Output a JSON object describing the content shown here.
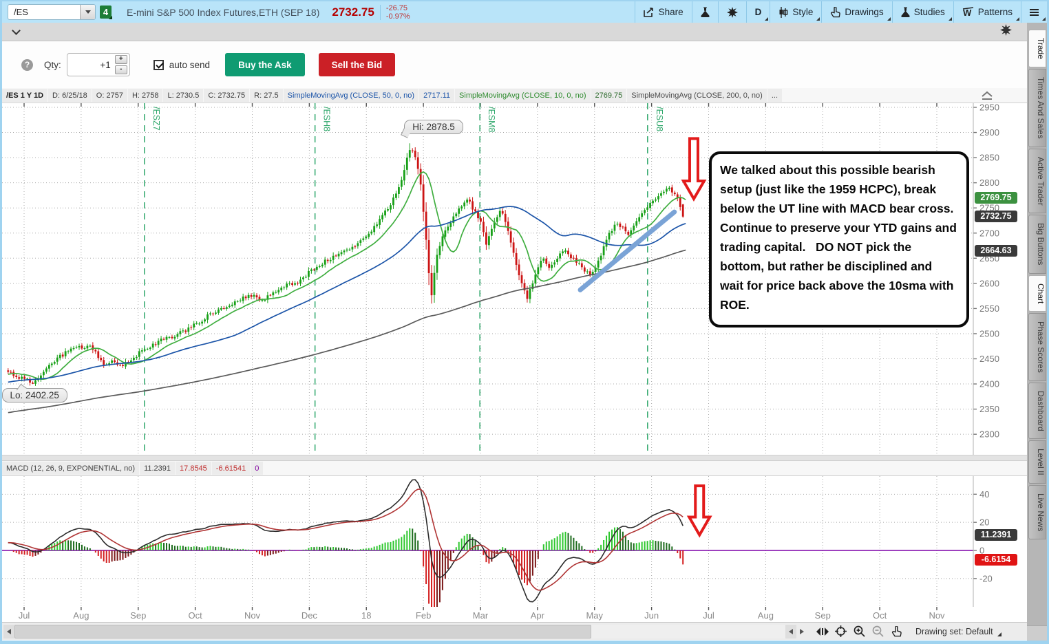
{
  "top_bar": {
    "symbol": "/ES",
    "link_badge": "4",
    "title": "E-mini S&P 500 Index Futures,ETH (SEP 18)",
    "price": "2732.75",
    "change": "-26.75",
    "change_pct": "-0.97%",
    "share_label": "Share",
    "timeframe_label": "D",
    "style_label": "Style",
    "drawings_label": "Drawings",
    "studies_label": "Studies",
    "patterns_label": "Patterns"
  },
  "order_bar": {
    "help": "?",
    "qty_label": "Qty:",
    "qty_value": "+1",
    "plus": "+",
    "minus": "-",
    "auto_send_label": "auto send",
    "buy_label": "Buy the Ask",
    "sell_label": "Sell the Bid"
  },
  "chart_header": {
    "cells": [
      {
        "t": "/ES 1 Y 1D",
        "c": "#1a1a1a",
        "b": true
      },
      {
        "t": "D: 6/25/18",
        "c": "#3c3c3c"
      },
      {
        "t": "O: 2757",
        "c": "#3c3c3c"
      },
      {
        "t": "H: 2758",
        "c": "#3c3c3c"
      },
      {
        "t": "L: 2730.5",
        "c": "#3c3c3c"
      },
      {
        "t": "C: 2732.75",
        "c": "#3c3c3c"
      },
      {
        "t": "R: 27.5",
        "c": "#3c3c3c"
      },
      {
        "t": "SimpleMovingAvg (CLOSE, 50, 0, no)",
        "c": "#1b54a8"
      },
      {
        "t": "2717.11",
        "c": "#1b54a8"
      },
      {
        "t": "SimpleMovingAvg (CLOSE, 10, 0, no)",
        "c": "#2e8b2e"
      },
      {
        "t": "2769.75",
        "c": "#2e6b2e"
      },
      {
        "t": "SimpleMovingAvg (CLOSE, 200, 0, no)",
        "c": "#4a4a4a"
      },
      {
        "t": "...",
        "c": "#4a4a4a"
      }
    ]
  },
  "macd_header": {
    "cells": [
      {
        "t": "MACD (12, 26, 9, EXPONENTIAL, no)",
        "c": "#3c3c3c"
      },
      {
        "t": "11.2391",
        "c": "#3c3c3c"
      },
      {
        "t": "17.8545",
        "c": "#c03030"
      },
      {
        "t": "-6.61541",
        "c": "#c03030"
      },
      {
        "t": "0",
        "c": "#8000a0"
      }
    ]
  },
  "sidebar": {
    "tabs": [
      {
        "label": "Trade",
        "active": true
      },
      {
        "label": "Times And Sales",
        "active": false
      },
      {
        "label": "Active Trader",
        "active": false
      },
      {
        "label": "Big Buttons",
        "active": false
      },
      {
        "label": "Chart",
        "active": true
      },
      {
        "label": "Phase Scores",
        "active": false
      },
      {
        "label": "Dashboard",
        "active": false
      },
      {
        "label": "Level II",
        "active": false
      },
      {
        "label": "Live News",
        "active": false
      }
    ]
  },
  "bottom_bar": {
    "drawing_set_label": "Drawing set: Default"
  },
  "annotation_note": "We talked about this possible bearish setup (just like the 1959 HCPC), break below the UT line with MACD bear cross.  Continue to preserve your YTD gains and trading capital.   DO NOT pick the bottom, but rather be disciplined and wait for price back above the 10sma with ROE.",
  "chart_data": {
    "type": "candlestick",
    "symbol": "/ES",
    "range": "1 Y",
    "interval": "1D",
    "price_ticks": [
      2950,
      2900,
      2850,
      2800,
      2750,
      2700,
      2650,
      2600,
      2550,
      2500,
      2450,
      2400,
      2350,
      2300
    ],
    "time_labels": [
      "Jul",
      "Aug",
      "Sep",
      "Oct",
      "Nov",
      "Dec",
      "18",
      "Feb",
      "Mar",
      "Apr",
      "May",
      "Jun",
      "Jul",
      "Aug",
      "Sep",
      "Oct",
      "Nov"
    ],
    "price_path_anchors": [
      [
        -0.28,
        2428
      ],
      [
        -0.15,
        2417
      ],
      [
        0.05,
        2408
      ],
      [
        0.18,
        2403
      ],
      [
        0.35,
        2424
      ],
      [
        0.55,
        2448
      ],
      [
        0.75,
        2464
      ],
      [
        0.95,
        2471
      ],
      [
        1.12,
        2477
      ],
      [
        1.28,
        2458
      ],
      [
        1.42,
        2437
      ],
      [
        1.58,
        2447
      ],
      [
        1.72,
        2434
      ],
      [
        1.88,
        2450
      ],
      [
        2.05,
        2464
      ],
      [
        2.25,
        2477
      ],
      [
        2.45,
        2490
      ],
      [
        2.65,
        2497
      ],
      [
        2.85,
        2507
      ],
      [
        3.05,
        2522
      ],
      [
        3.25,
        2538
      ],
      [
        3.45,
        2551
      ],
      [
        3.65,
        2560
      ],
      [
        3.85,
        2571
      ],
      [
        4.0,
        2577
      ],
      [
        4.15,
        2561
      ],
      [
        4.3,
        2578
      ],
      [
        4.5,
        2591
      ],
      [
        4.65,
        2600
      ],
      [
        4.8,
        2599
      ],
      [
        5.0,
        2624
      ],
      [
        5.2,
        2639
      ],
      [
        5.4,
        2651
      ],
      [
        5.6,
        2661
      ],
      [
        5.75,
        2672
      ],
      [
        5.95,
        2687
      ],
      [
        6.1,
        2706
      ],
      [
        6.3,
        2736
      ],
      [
        6.5,
        2772
      ],
      [
        6.62,
        2808
      ],
      [
        6.72,
        2852
      ],
      [
        6.78,
        2866
      ],
      [
        6.85,
        2855
      ],
      [
        6.95,
        2800
      ],
      [
        7.02,
        2720
      ],
      [
        7.08,
        2640
      ],
      [
        7.14,
        2572
      ],
      [
        7.22,
        2650
      ],
      [
        7.35,
        2698
      ],
      [
        7.5,
        2726
      ],
      [
        7.65,
        2752
      ],
      [
        7.78,
        2768
      ],
      [
        7.88,
        2745
      ],
      [
        8.0,
        2722
      ],
      [
        8.1,
        2680
      ],
      [
        8.22,
        2712
      ],
      [
        8.35,
        2748
      ],
      [
        8.48,
        2705
      ],
      [
        8.6,
        2652
      ],
      [
        8.72,
        2598
      ],
      [
        8.82,
        2568
      ],
      [
        8.95,
        2615
      ],
      [
        9.08,
        2650
      ],
      [
        9.2,
        2632
      ],
      [
        9.32,
        2648
      ],
      [
        9.45,
        2668
      ],
      [
        9.58,
        2652
      ],
      [
        9.7,
        2642
      ],
      [
        9.82,
        2625
      ],
      [
        9.95,
        2615
      ],
      [
        10.08,
        2645
      ],
      [
        10.22,
        2688
      ],
      [
        10.35,
        2718
      ],
      [
        10.48,
        2712
      ],
      [
        10.6,
        2695
      ],
      [
        10.72,
        2718
      ],
      [
        10.85,
        2740
      ],
      [
        10.98,
        2758
      ],
      [
        11.1,
        2772
      ],
      [
        11.22,
        2782
      ],
      [
        11.32,
        2789
      ],
      [
        11.4,
        2778
      ],
      [
        11.47,
        2762
      ],
      [
        11.52,
        2745
      ],
      [
        11.55,
        2733
      ]
    ],
    "last_bar": {
      "date": "6/25/18",
      "open": 2757,
      "high": 2758,
      "low": 2730.5,
      "close": 2732.75,
      "range": 27.5
    },
    "hi_label": "Hi: 2878.5",
    "hi_value": 2878.5,
    "lo_label": "Lo: 2402.25",
    "lo_value": 2402.25,
    "up_color": "#17a017",
    "down_color": "#cc1414",
    "smas": [
      {
        "period": 10,
        "color": "#3fae3f",
        "last": 2769.75
      },
      {
        "period": 50,
        "color": "#1b54a8",
        "last": 2717.11
      },
      {
        "period": 200,
        "color": "#5a5a5a",
        "last": 2664.63
      }
    ],
    "expiry_lines": [
      {
        "label": "/ESZ7",
        "m": 2.11
      },
      {
        "label": "/ESH8",
        "m": 5.1
      },
      {
        "label": "/ESM8",
        "m": 7.99
      },
      {
        "label": "/ESU8",
        "m": 10.93
      }
    ],
    "expiry_color": "#2fa76b",
    "trendline": {
      "x1_m": 9.75,
      "p1": 2587,
      "x2_m": 11.4,
      "p2": 2742,
      "color": "#7aa3d6"
    },
    "arrow_color": "#e31b1b",
    "price_arrow": {
      "m": 11.74,
      "top_price": 2888,
      "bottom_price": 2768
    },
    "macd_arrow": {
      "m": 11.84,
      "top_value": 46,
      "bottom_value": 11
    },
    "price_badges": [
      {
        "text": "2769.75",
        "value": 2769.75,
        "bg": "#3c9140"
      },
      {
        "text": "2732.75",
        "value": 2732.75,
        "bg": "#3a3a3a"
      },
      {
        "text": "2664.63",
        "value": 2664.63,
        "bg": "#3a3a3a"
      }
    ],
    "macd": {
      "fast": 12,
      "slow": 26,
      "signal": 9,
      "average_type": "EXPONENTIAL",
      "value": 11.2391,
      "avg": 17.8545,
      "diff": -6.61541,
      "zero": 0,
      "ticks": [
        40,
        20,
        0,
        -20
      ],
      "line_color": "#2b2b2b",
      "signal_color": "#b03434",
      "zero_color": "#7d00a8",
      "hist_pos": "#2ec72e",
      "hist_pos_dark": "#1d6b1d",
      "hist_neg": "#d42020",
      "hist_neg_dark": "#7c1a1a"
    },
    "macd_badges": [
      {
        "text": "11.2391",
        "value": 11.2391,
        "bg": "#3a3a3a"
      },
      {
        "text": "-6.6154",
        "value": -6.6154,
        "bg": "#e01414"
      }
    ]
  }
}
